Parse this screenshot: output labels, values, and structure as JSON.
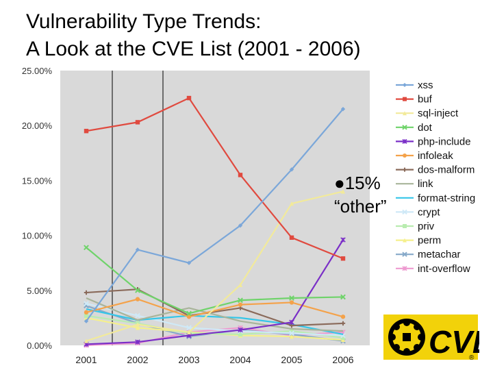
{
  "title": {
    "line1": "Vulnerability Type Trends:",
    "line2": "A Look at the CVE List (2001 - 2006)"
  },
  "annotation": {
    "line1": "●15%",
    "line2": "“other”"
  },
  "logo": {
    "text": "CVE",
    "registered_mark": "®"
  },
  "chart_data": {
    "type": "line",
    "x": [
      "2001",
      "2002",
      "2003",
      "2004",
      "2005",
      "2006"
    ],
    "ylim": [
      0,
      25
    ],
    "yticks": [
      0,
      5,
      10,
      15,
      20,
      25
    ],
    "ytick_labels": [
      "0.00%",
      "5.00%",
      "10.00%",
      "15.00%",
      "20.00%",
      "25.00%"
    ],
    "legend_position": "right",
    "grid": false,
    "plot_background": "#d9d9d9",
    "series": [
      {
        "name": "xss",
        "color": "#7ba7d9",
        "marker": "diamond",
        "values": [
          2.2,
          8.7,
          7.5,
          10.9,
          16.0,
          21.5
        ]
      },
      {
        "name": "buf",
        "color": "#e04a3f",
        "marker": "square",
        "values": [
          19.5,
          20.3,
          22.5,
          15.5,
          9.8,
          7.9
        ]
      },
      {
        "name": "sql-inject",
        "color": "#f2ea9a",
        "marker": "triangle",
        "values": [
          0.4,
          1.9,
          1.2,
          5.5,
          12.9,
          14.0
        ]
      },
      {
        "name": "dot",
        "color": "#6fd36a",
        "marker": "x",
        "values": [
          8.9,
          5.0,
          2.9,
          4.1,
          4.3,
          4.4
        ]
      },
      {
        "name": "php-include",
        "color": "#7a2fc7",
        "marker": "star",
        "values": [
          0.1,
          0.3,
          0.9,
          1.4,
          2.1,
          9.6
        ]
      },
      {
        "name": "infoleak",
        "color": "#f4a24a",
        "marker": "circle",
        "values": [
          3.0,
          4.2,
          2.6,
          3.7,
          3.9,
          2.6
        ]
      },
      {
        "name": "dos-malform",
        "color": "#8a6a5a",
        "marker": "plus",
        "values": [
          4.8,
          5.1,
          2.7,
          3.4,
          1.8,
          2.0
        ]
      },
      {
        "name": "link",
        "color": "#a8b49a",
        "marker": "none",
        "values": [
          4.3,
          2.3,
          3.4,
          2.2,
          1.5,
          1.3
        ]
      },
      {
        "name": "format-string",
        "color": "#35c6e8",
        "marker": "none",
        "values": [
          3.3,
          2.3,
          2.7,
          2.5,
          1.9,
          1.0
        ]
      },
      {
        "name": "crypt",
        "color": "#cfe9f7",
        "marker": "x",
        "values": [
          3.8,
          2.7,
          1.6,
          1.3,
          1.1,
          0.9
        ]
      },
      {
        "name": "priv",
        "color": "#b9ecb0",
        "marker": "square",
        "values": [
          2.7,
          2.0,
          1.1,
          1.0,
          1.3,
          0.7
        ]
      },
      {
        "name": "perm",
        "color": "#f5f08c",
        "marker": "triangle",
        "values": [
          2.5,
          1.6,
          1.2,
          0.9,
          0.8,
          0.5
        ]
      },
      {
        "name": "metachar",
        "color": "#86a9c9",
        "marker": "x",
        "values": [
          3.6,
          2.0,
          0.8,
          1.4,
          1.0,
          0.4
        ]
      },
      {
        "name": "int-overflow",
        "color": "#ee9ad0",
        "marker": "star",
        "values": [
          0.0,
          0.2,
          1.2,
          1.6,
          0.9,
          1.2
        ]
      }
    ]
  }
}
